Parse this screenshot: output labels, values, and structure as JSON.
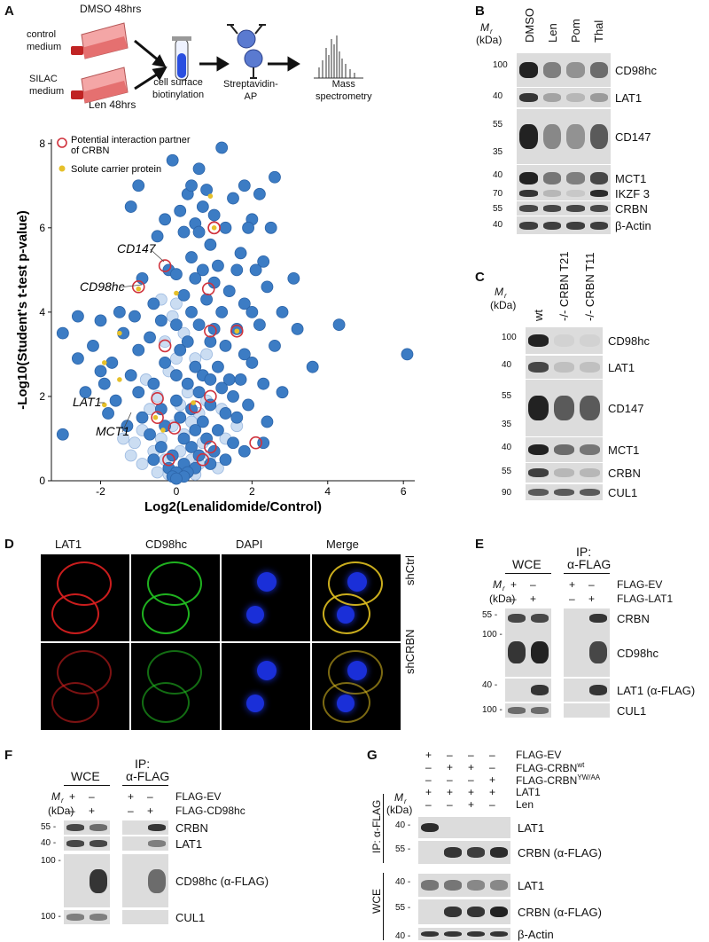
{
  "panels": {
    "a": "A",
    "b": "B",
    "c": "C",
    "d": "D",
    "e": "E",
    "f": "F",
    "g": "G"
  },
  "workflow": {
    "top_label": "DMSO 48hrs",
    "control": "control\nmedium",
    "silac": "SILAC\nmedium",
    "len": "Len 48hrs",
    "biotin": "cell surface\nbiotinylation",
    "strep": "Streptavidin-\nAP",
    "mass": "Mass\nspectrometry"
  },
  "chart_data": {
    "type": "scatter",
    "xlabel": "Log2(Lenalidomide/Control)",
    "ylabel": "-Log10(Student's t-test p-value)",
    "xlim": [
      -3.3,
      6.3
    ],
    "ylim": [
      0,
      8.1
    ],
    "xticks": [
      "-2",
      "0",
      "2",
      "4",
      "6"
    ],
    "yticks": [
      "0",
      "2",
      "4",
      "6",
      "8"
    ],
    "legend": [
      {
        "name": "Potential interaction partner of CRBN",
        "color": "#d0323c"
      },
      {
        "name": "Solute carrier protein",
        "color": "#e6c02a"
      }
    ],
    "annotations": [
      "CD147",
      "CD98hc",
      "LAT1",
      "MCT1"
    ],
    "points": [
      [
        1.2,
        7.9
      ],
      [
        -0.1,
        7.6
      ],
      [
        0.6,
        7.4
      ],
      [
        2.6,
        7.2
      ],
      [
        1.8,
        7.0
      ],
      [
        -1.0,
        7.0
      ],
      [
        0.8,
        6.9
      ],
      [
        2.2,
        6.8
      ],
      [
        0.3,
        6.8
      ],
      [
        1.5,
        6.7
      ],
      [
        0.7,
        6.5
      ],
      [
        -1.2,
        6.5
      ],
      [
        1.0,
        6.3
      ],
      [
        2.0,
        6.2
      ],
      [
        -0.3,
        6.2
      ],
      [
        0.5,
        6.1
      ],
      [
        0.2,
        5.9
      ],
      [
        1.3,
        6.0
      ],
      [
        2.5,
        6.0
      ],
      [
        -0.5,
        5.8
      ],
      [
        0.9,
        5.6
      ],
      [
        1.7,
        5.4
      ],
      [
        0.4,
        5.3
      ],
      [
        2.3,
        5.2
      ],
      [
        1.1,
        5.1
      ],
      [
        -0.2,
        5.0
      ],
      [
        0.7,
        5.0
      ],
      [
        1.6,
        5.0
      ],
      [
        2.1,
        5.0
      ],
      [
        0.0,
        4.9
      ],
      [
        -0.9,
        4.8
      ],
      [
        0.5,
        4.8
      ],
      [
        1.0,
        4.7
      ],
      [
        1.4,
        4.5
      ],
      [
        2.4,
        4.6
      ],
      [
        3.1,
        4.8
      ],
      [
        0.2,
        4.4
      ],
      [
        0.8,
        4.3
      ],
      [
        1.8,
        4.2
      ],
      [
        -0.6,
        4.2
      ],
      [
        0.4,
        4.0
      ],
      [
        1.2,
        4.0
      ],
      [
        2.0,
        4.0
      ],
      [
        2.8,
        4.0
      ],
      [
        -1.5,
        4.0
      ],
      [
        -2.6,
        3.9
      ],
      [
        -2.0,
        3.8
      ],
      [
        -1.1,
        3.9
      ],
      [
        -0.4,
        3.8
      ],
      [
        0.0,
        3.7
      ],
      [
        0.6,
        3.7
      ],
      [
        1.0,
        3.6
      ],
      [
        1.6,
        3.6
      ],
      [
        2.2,
        3.7
      ],
      [
        3.2,
        3.6
      ],
      [
        4.3,
        3.7
      ],
      [
        -3.0,
        3.5
      ],
      [
        -1.4,
        3.5
      ],
      [
        -0.7,
        3.4
      ],
      [
        0.3,
        3.3
      ],
      [
        0.9,
        3.3
      ],
      [
        1.3,
        3.2
      ],
      [
        2.6,
        3.2
      ],
      [
        -2.2,
        3.2
      ],
      [
        -1.0,
        3.1
      ],
      [
        0.1,
        3.1
      ],
      [
        1.8,
        3.0
      ],
      [
        6.1,
        3.0
      ],
      [
        -2.6,
        2.9
      ],
      [
        -1.7,
        2.8
      ],
      [
        -0.3,
        2.8
      ],
      [
        0.5,
        2.7
      ],
      [
        1.1,
        2.7
      ],
      [
        2.0,
        2.8
      ],
      [
        3.6,
        2.7
      ],
      [
        -2.0,
        2.6
      ],
      [
        -1.2,
        2.5
      ],
      [
        0.0,
        2.5
      ],
      [
        0.7,
        2.5
      ],
      [
        1.4,
        2.4
      ],
      [
        0.9,
        2.4
      ],
      [
        1.7,
        2.4
      ],
      [
        -1.9,
        2.3
      ],
      [
        -0.6,
        2.3
      ],
      [
        0.3,
        2.3
      ],
      [
        1.2,
        2.2
      ],
      [
        2.3,
        2.3
      ],
      [
        -2.4,
        2.1
      ],
      [
        -1.0,
        2.1
      ],
      [
        0.6,
        2.1
      ],
      [
        1.5,
        2.0
      ],
      [
        2.8,
        2.1
      ],
      [
        -1.6,
        1.9
      ],
      [
        0.0,
        1.9
      ],
      [
        0.9,
        1.8
      ],
      [
        1.9,
        1.8
      ],
      [
        -0.4,
        1.7
      ],
      [
        0.4,
        1.7
      ],
      [
        1.3,
        1.6
      ],
      [
        -1.8,
        1.6
      ],
      [
        -0.9,
        1.5
      ],
      [
        0.1,
        1.5
      ],
      [
        0.7,
        1.4
      ],
      [
        1.6,
        1.5
      ],
      [
        2.4,
        1.4
      ],
      [
        -1.3,
        1.3
      ],
      [
        -0.3,
        1.3
      ],
      [
        0.5,
        1.2
      ],
      [
        1.1,
        1.2
      ],
      [
        -3.0,
        1.1
      ],
      [
        -0.7,
        1.1
      ],
      [
        0.2,
        1.0
      ],
      [
        0.8,
        1.0
      ],
      [
        1.5,
        0.9
      ],
      [
        2.3,
        0.9
      ],
      [
        -0.4,
        0.8
      ],
      [
        0.4,
        0.8
      ],
      [
        1.0,
        0.7
      ],
      [
        1.8,
        0.7
      ],
      [
        -0.1,
        0.6
      ],
      [
        0.6,
        0.6
      ],
      [
        1.3,
        0.5
      ],
      [
        -0.6,
        0.5
      ],
      [
        0.2,
        0.4
      ],
      [
        0.9,
        0.4
      ],
      [
        -0.2,
        0.3
      ],
      [
        0.5,
        0.3
      ],
      [
        0.0,
        0.2
      ],
      [
        0.3,
        0.2
      ],
      [
        -0.1,
        0.1
      ],
      [
        0.2,
        0.1
      ],
      [
        0.0,
        0.05
      ],
      [
        0.6,
        5.9
      ],
      [
        0.4,
        7.0
      ],
      [
        1.9,
        6.0
      ],
      [
        0.1,
        6.4
      ]
    ],
    "faint": [
      [
        0.0,
        4.2
      ],
      [
        -0.3,
        3.3
      ],
      [
        0.2,
        3.5
      ],
      [
        0.5,
        2.9
      ],
      [
        -0.2,
        2.6
      ],
      [
        0.3,
        2.1
      ],
      [
        -0.5,
        2.0
      ],
      [
        0.1,
        1.8
      ],
      [
        -0.7,
        1.7
      ],
      [
        0.6,
        1.6
      ],
      [
        -0.1,
        1.3
      ],
      [
        0.4,
        1.4
      ],
      [
        -0.9,
        1.2
      ],
      [
        0.2,
        1.1
      ],
      [
        -0.4,
        1.0
      ],
      [
        0.7,
        0.9
      ],
      [
        -0.6,
        0.7
      ],
      [
        0.1,
        0.7
      ],
      [
        0.9,
        0.6
      ],
      [
        -0.3,
        0.5
      ],
      [
        0.4,
        0.5
      ],
      [
        -0.9,
        0.4
      ],
      [
        0.6,
        0.4
      ],
      [
        -0.5,
        0.2
      ],
      [
        0.3,
        0.3
      ],
      [
        1.1,
        0.3
      ],
      [
        -0.2,
        0.15
      ],
      [
        0.5,
        0.15
      ],
      [
        -1.2,
        0.6
      ],
      [
        1.3,
        1.0
      ],
      [
        -1.4,
        1.0
      ],
      [
        1.6,
        1.3
      ],
      [
        -0.8,
        2.4
      ],
      [
        0.8,
        3.0
      ],
      [
        -1.1,
        0.9
      ],
      [
        0.0,
        2.9
      ],
      [
        -0.4,
        4.3
      ],
      [
        1.2,
        1.7
      ],
      [
        -0.1,
        3.9
      ],
      [
        0.8,
        1.9
      ]
    ],
    "crbn_partners": [
      [
        1.0,
        6.0
      ],
      [
        0.85,
        4.55
      ],
      [
        -0.3,
        5.1
      ],
      [
        -1.0,
        4.6
      ],
      [
        0.9,
        3.55
      ],
      [
        1.6,
        3.55
      ],
      [
        -0.3,
        3.2
      ],
      [
        0.9,
        2.0
      ],
      [
        0.5,
        1.75
      ],
      [
        -0.5,
        1.5
      ],
      [
        -0.05,
        1.25
      ],
      [
        2.1,
        0.9
      ],
      [
        0.9,
        0.8
      ],
      [
        -0.5,
        1.95
      ],
      [
        0.7,
        0.5
      ],
      [
        1.0,
        6.0
      ],
      [
        -0.2,
        0.5
      ]
    ],
    "slc": [
      [
        1.0,
        6.0
      ],
      [
        0.9,
        6.75
      ],
      [
        0.0,
        4.45
      ],
      [
        -1.0,
        4.55
      ],
      [
        -1.9,
        2.8
      ],
      [
        -1.5,
        2.4
      ],
      [
        -1.5,
        3.5
      ],
      [
        -1.9,
        1.8
      ],
      [
        -0.55,
        1.5
      ],
      [
        1.6,
        3.55
      ],
      [
        0.45,
        1.85
      ],
      [
        -0.35,
        1.2
      ]
    ]
  },
  "blot_b": {
    "mr": "M",
    "mr_sub": "r",
    "kda": "(kDa)",
    "lanes": [
      "DMSO",
      "Len",
      "Pom",
      "Thal"
    ],
    "rows": [
      {
        "label": "CD98hc",
        "mw": [
          "100"
        ]
      },
      {
        "label": "LAT1",
        "mw": [
          "40"
        ]
      },
      {
        "label": "CD147",
        "mw": [
          "55",
          "35"
        ]
      },
      {
        "label": "MCT1",
        "mw": [
          "40"
        ]
      },
      {
        "label": "IKZF 3",
        "mw": [
          "70"
        ]
      },
      {
        "label": "CRBN",
        "mw": [
          "55"
        ]
      },
      {
        "label": "β-Actin",
        "mw": [
          "40"
        ]
      }
    ]
  },
  "blot_c": {
    "mr": "M",
    "mr_sub": "r",
    "kda": "(kDa)",
    "lanes": [
      "wt",
      "-/- CRBN T21",
      "-/- CRBN T11"
    ],
    "rows": [
      {
        "label": "CD98hc",
        "mw": [
          "100"
        ]
      },
      {
        "label": "LAT1",
        "mw": [
          "40"
        ]
      },
      {
        "label": "CD147",
        "mw": [
          "55",
          "35"
        ]
      },
      {
        "label": "MCT1",
        "mw": [
          "40"
        ]
      },
      {
        "label": "CRBN",
        "mw": [
          "55"
        ]
      },
      {
        "label": "CUL1",
        "mw": [
          "90"
        ]
      }
    ]
  },
  "micro_d": {
    "cols": [
      "LAT1",
      "CD98hc",
      "DAPI",
      "Merge"
    ],
    "rows": [
      "shCtrl",
      "shCRBN"
    ]
  },
  "blot_e": {
    "wce": "WCE",
    "ip": "IP:",
    "ip2": "α-FLAG",
    "mr": "M",
    "mr_sub": "r",
    "kda": "(kDa)",
    "conds": [
      {
        "label": "FLAG-EV",
        "signs": [
          "+",
          "–",
          "+",
          "–"
        ]
      },
      {
        "label": "FLAG-LAT1",
        "signs": [
          "–",
          "+",
          "–",
          "+"
        ]
      }
    ],
    "rows": [
      {
        "label": "CRBN",
        "mw": "55 -"
      },
      {
        "label": "CD98hc",
        "mw": "100 -"
      },
      {
        "label": "LAT1 (α-FLAG)",
        "mw": "40 -"
      },
      {
        "label": "CUL1",
        "mw": "100 -"
      }
    ]
  },
  "blot_f": {
    "wce": "WCE",
    "ip": "IP:",
    "ip2": "α-FLAG",
    "mr": "M",
    "mr_sub": "r",
    "kda": "(kDa)",
    "conds": [
      {
        "label": "FLAG-EV",
        "signs": [
          "+",
          "–",
          "+",
          "–"
        ]
      },
      {
        "label": "FLAG-CD98hc",
        "signs": [
          "–",
          "+",
          "–",
          "+"
        ]
      }
    ],
    "rows": [
      {
        "label": "CRBN",
        "mw": "55 -"
      },
      {
        "label": "LAT1",
        "mw": "40 -"
      },
      {
        "label": "CD98hc (α-FLAG)",
        "mw": "100 -"
      },
      {
        "label": "CUL1",
        "mw": "100 -"
      }
    ]
  },
  "blot_g": {
    "mr": "M",
    "mr_sub": "r",
    "kda": "(kDa)",
    "conds": [
      {
        "label": "FLAG-EV",
        "signs": [
          "+",
          "–",
          "–",
          "–"
        ]
      },
      {
        "label": "FLAG-CRBN",
        "sup": "wt",
        "signs": [
          "–",
          "+",
          "+",
          "–"
        ]
      },
      {
        "label": "FLAG-CRBN",
        "sup": "YW/AA",
        "signs": [
          "–",
          "–",
          "–",
          "+"
        ]
      },
      {
        "label": "LAT1",
        "signs": [
          "+",
          "+",
          "+",
          "+"
        ]
      },
      {
        "label": "Len",
        "signs": [
          "–",
          "–",
          "+",
          "–"
        ]
      }
    ],
    "ip_side": "IP: α-FLAG",
    "wce_side": "WCE",
    "rows": [
      {
        "label": "LAT1",
        "mw": "40 -"
      },
      {
        "label": "CRBN (α-FLAG)",
        "mw": "55 -"
      },
      {
        "label": "LAT1",
        "mw": "40 -"
      },
      {
        "label": "CRBN (α-FLAG)",
        "mw": "55 -"
      },
      {
        "label": "β-Actin",
        "mw": "40 -"
      }
    ]
  }
}
